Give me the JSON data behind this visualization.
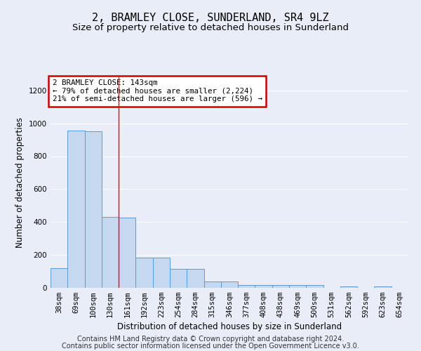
{
  "title": "2, BRAMLEY CLOSE, SUNDERLAND, SR4 9LZ",
  "subtitle": "Size of property relative to detached houses in Sunderland",
  "xlabel": "Distribution of detached houses by size in Sunderland",
  "ylabel": "Number of detached properties",
  "categories": [
    "38sqm",
    "69sqm",
    "100sqm",
    "130sqm",
    "161sqm",
    "192sqm",
    "223sqm",
    "254sqm",
    "284sqm",
    "315sqm",
    "346sqm",
    "377sqm",
    "408sqm",
    "438sqm",
    "469sqm",
    "500sqm",
    "531sqm",
    "562sqm",
    "592sqm",
    "623sqm",
    "654sqm"
  ],
  "bar_heights": [
    120,
    955,
    950,
    430,
    425,
    185,
    185,
    115,
    115,
    40,
    40,
    17,
    17,
    15,
    15,
    15,
    0,
    10,
    0,
    10,
    0
  ],
  "ylim": [
    0,
    1280
  ],
  "yticks": [
    0,
    200,
    400,
    600,
    800,
    1000,
    1200
  ],
  "bar_color": "#c5d8f0",
  "bar_edge_color": "#5b9bd5",
  "red_line_x": 3.5,
  "annotation_title": "2 BRAMLEY CLOSE: 143sqm",
  "annotation_line1": "← 79% of detached houses are smaller (2,224)",
  "annotation_line2": "21% of semi-detached houses are larger (596) →",
  "annotation_box_color": "#ffffff",
  "annotation_box_edge": "#cc0000",
  "footer_line1": "Contains HM Land Registry data © Crown copyright and database right 2024.",
  "footer_line2": "Contains public sector information licensed under the Open Government Licence v3.0.",
  "background_color": "#e8edf8",
  "plot_bg_color": "#e8edf8",
  "grid_color": "#ffffff",
  "title_fontsize": 11,
  "subtitle_fontsize": 9.5,
  "axis_label_fontsize": 8.5,
  "tick_fontsize": 7.5,
  "footer_fontsize": 7.0
}
